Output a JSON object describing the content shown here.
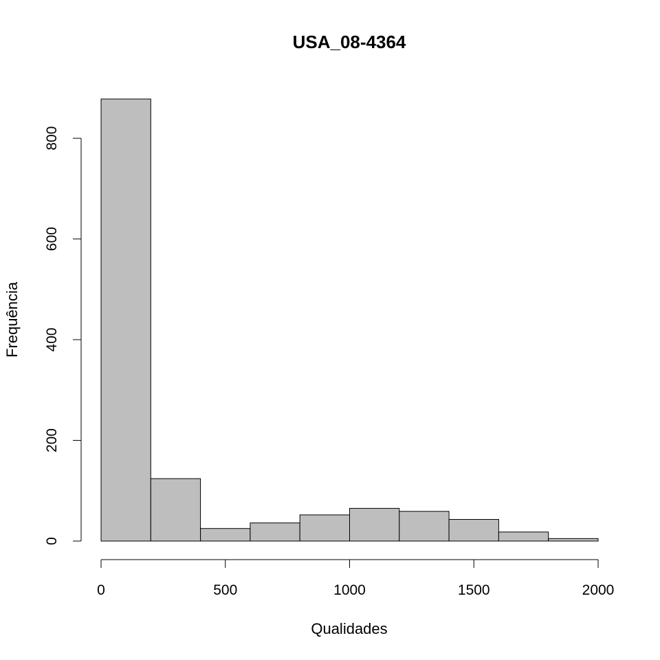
{
  "chart_data": {
    "type": "bar",
    "title": "USA_08-4364",
    "xlabel": "Qualidades",
    "ylabel": "Frequência",
    "bin_edges": [
      0,
      200,
      400,
      600,
      800,
      1000,
      1200,
      1400,
      1600,
      1800,
      2000
    ],
    "values": [
      878,
      124,
      25,
      36,
      52,
      65,
      59,
      43,
      18,
      5
    ],
    "xlim": [
      0,
      2000
    ],
    "ylim": [
      0,
      878
    ],
    "x_ticks": [
      0,
      500,
      1000,
      1500,
      2000
    ],
    "y_ticks": [
      0,
      200,
      400,
      600,
      800
    ],
    "bar_color": "#bebebe",
    "grid": false,
    "legend": "none"
  }
}
